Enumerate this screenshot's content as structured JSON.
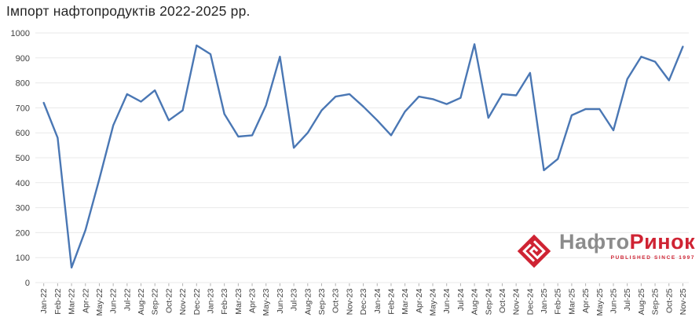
{
  "title": "Імпорт нафтопродуктів 2022-2025 рр.",
  "chart_data": {
    "type": "line",
    "title": "Імпорт нафтопродуктів 2022-2025 рр.",
    "xlabel": "",
    "ylabel": "",
    "categories": [
      "Jan-22",
      "Feb-22",
      "Mar-22",
      "Apr-22",
      "May-22",
      "Jun-22",
      "Jul-22",
      "Aug-22",
      "Sep-22",
      "Oct-22",
      "Nov-22",
      "Dec-22",
      "Jan-23",
      "Feb-23",
      "Mar-23",
      "Apr-23",
      "May-23",
      "Jun-23",
      "Jul-23",
      "Aug-23",
      "Sep-23",
      "Oct-23",
      "Nov-23",
      "Dec-23",
      "Jan-24",
      "Feb-24",
      "Mar-24",
      "Apr-24",
      "May-24",
      "Jun-24",
      "Jul-24",
      "Aug-24",
      "Sep-24",
      "Oct-24",
      "Nov-24",
      "Dec-24",
      "Jan-25",
      "Feb-25",
      "Mar-25",
      "Apr-25",
      "May-25",
      "Jun-25",
      "Jul-25",
      "Aug-25",
      "Sep-25",
      "Oct-25",
      "Nov-25"
    ],
    "values": [
      720,
      580,
      60,
      210,
      415,
      630,
      755,
      725,
      770,
      650,
      690,
      950,
      915,
      675,
      585,
      590,
      710,
      905,
      540,
      600,
      690,
      745,
      755,
      705,
      650,
      590,
      685,
      745,
      735,
      715,
      740,
      955,
      660,
      755,
      750,
      840,
      450,
      495,
      670,
      695,
      695,
      610,
      815,
      905,
      885,
      810,
      945
    ],
    "ylim": [
      0,
      1000
    ],
    "ytick_step": 100,
    "yticks": [
      "0",
      "100",
      "200",
      "300",
      "400",
      "500",
      "600",
      "700",
      "800",
      "900",
      "1000"
    ],
    "grid": "horizontal",
    "legend": "none"
  },
  "logo": {
    "name_part1": "Нафто",
    "name_part2": "Ринок",
    "tagline": "PUBLISHED SINCE 1997"
  },
  "colors": {
    "line": "#4a77b4",
    "grid": "#e9e9e9",
    "tick": "#b3b3b3",
    "axis_text": "#404040",
    "title_text": "#262626",
    "logo_gray": "#8c8c8c",
    "logo_red": "#cf2333",
    "background": "#ffffff"
  }
}
